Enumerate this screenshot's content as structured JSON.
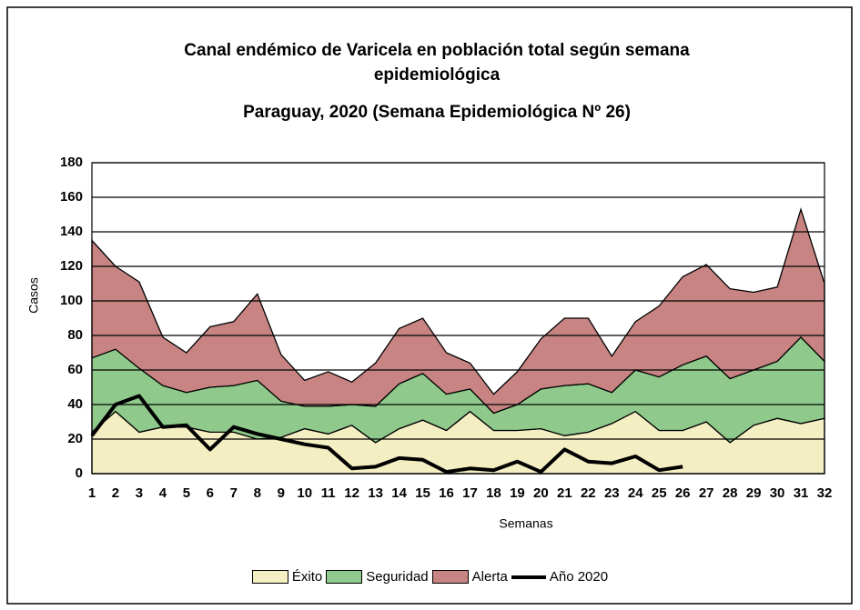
{
  "chart_data": {
    "type": "area",
    "title": "Canal endémico de Varicela en población total según semana epidemiológica",
    "subtitle": "Paraguay, 2020 (Semana Epidemiológica Nº 26)",
    "x_label": "Semanas",
    "y_label": "Casos",
    "categories": [
      1,
      2,
      3,
      4,
      5,
      6,
      7,
      8,
      9,
      10,
      11,
      12,
      13,
      14,
      15,
      16,
      17,
      18,
      19,
      20,
      21,
      22,
      23,
      24,
      25,
      26,
      27,
      28,
      29,
      30,
      31,
      32
    ],
    "series": [
      {
        "name": "Éxito",
        "type": "area",
        "color": "#f4eec3",
        "values": [
          24,
          36,
          24,
          27,
          27,
          24,
          24,
          20,
          21,
          26,
          23,
          28,
          18,
          26,
          31,
          25,
          36,
          25,
          25,
          26,
          22,
          24,
          29,
          36,
          25,
          25,
          30,
          18,
          28,
          32,
          29,
          32
        ]
      },
      {
        "name": "Seguridad",
        "type": "area",
        "color": "#8fca8c",
        "values": [
          43,
          36,
          37,
          24,
          20,
          26,
          27,
          34,
          21,
          13,
          16,
          12,
          21,
          26,
          27,
          21,
          13,
          10,
          15,
          23,
          29,
          28,
          18,
          24,
          31,
          38,
          38,
          37,
          32,
          33,
          50,
          33
        ]
      },
      {
        "name": "Alerta",
        "type": "area",
        "color": "#c78482",
        "values": [
          68,
          48,
          50,
          28,
          23,
          35,
          37,
          50,
          27,
          15,
          20,
          13,
          25,
          32,
          32,
          24,
          15,
          11,
          19,
          29,
          39,
          38,
          21,
          28,
          41,
          51,
          53,
          52,
          45,
          43,
          74,
          45
        ]
      },
      {
        "name": "Año 2020",
        "type": "line",
        "color": "#000000",
        "values": [
          22,
          40,
          45,
          27,
          28,
          14,
          27,
          23,
          20,
          17,
          15,
          3,
          4,
          9,
          8,
          1,
          3,
          2,
          7,
          1,
          14,
          7,
          6,
          10,
          2,
          4,
          null,
          null,
          null,
          null,
          null,
          null
        ]
      }
    ],
    "ylim": [
      0,
      180
    ],
    "yticks": [
      0,
      20,
      40,
      60,
      80,
      100,
      120,
      140,
      160,
      180
    ],
    "grid": true
  }
}
